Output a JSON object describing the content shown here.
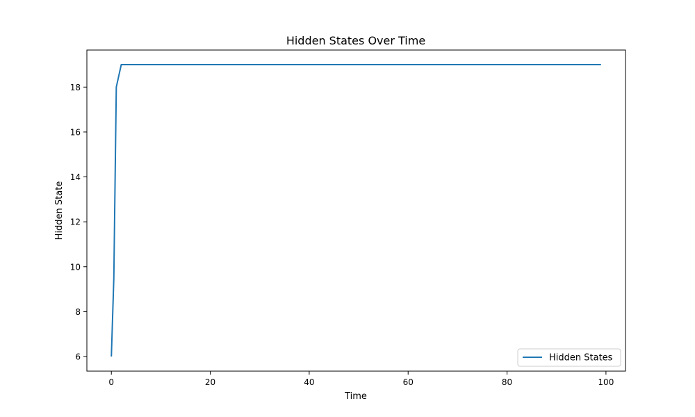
{
  "chart_data": {
    "type": "line",
    "title": "Hidden States Over Time",
    "xlabel": "Time",
    "ylabel": "Hidden State",
    "xlim": [
      -4.95,
      103.95
    ],
    "ylim": [
      5.35,
      19.65
    ],
    "xticks": [
      0,
      20,
      40,
      60,
      80,
      100
    ],
    "yticks": [
      6,
      8,
      10,
      12,
      14,
      16,
      18
    ],
    "grid": false,
    "legend_position": "lower-right",
    "series": [
      {
        "name": "Hidden States",
        "color": "#1f77b4",
        "x": [
          0,
          0.5,
          1,
          2,
          99
        ],
        "y": [
          6,
          9.5,
          18,
          19,
          19
        ]
      }
    ]
  }
}
